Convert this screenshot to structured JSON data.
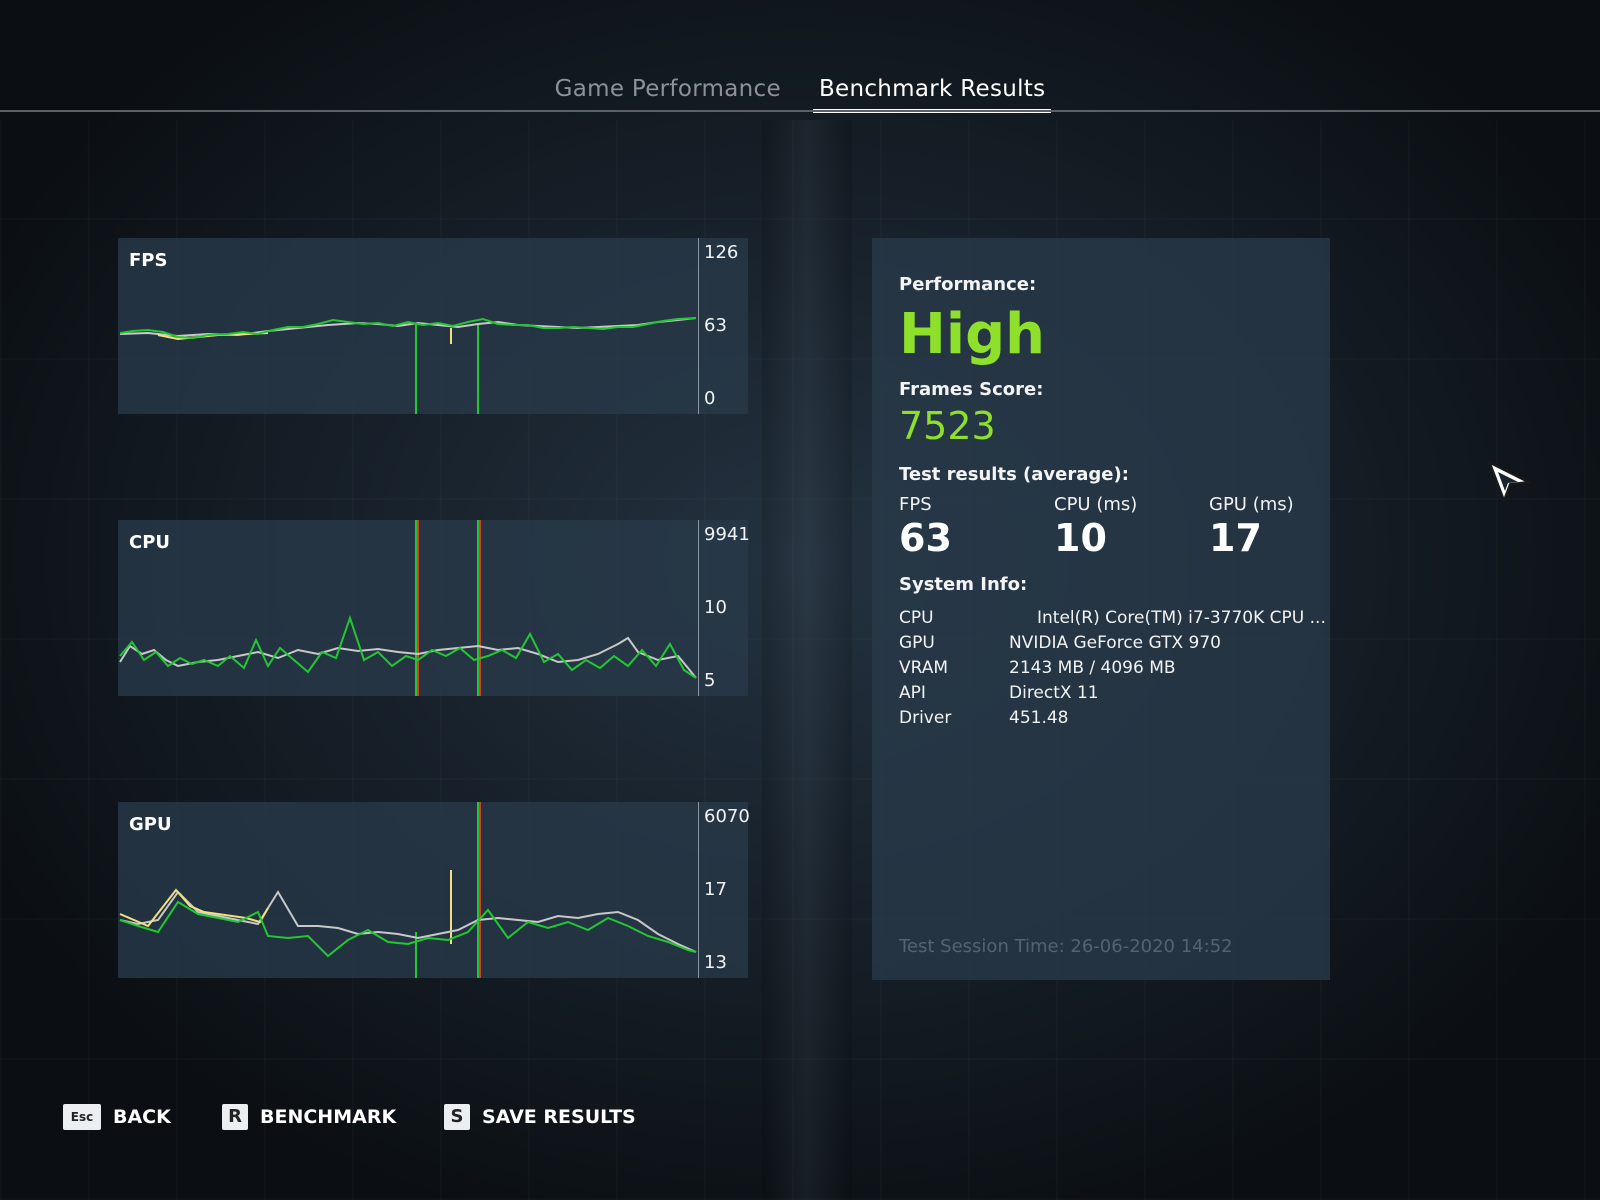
{
  "tabs": [
    {
      "label": "Game Performance",
      "active": false
    },
    {
      "label": "Benchmark Results",
      "active": true
    }
  ],
  "graphs": {
    "fps": {
      "title": "FPS",
      "ticks": [
        "126",
        "63",
        "0"
      ]
    },
    "cpu": {
      "title": "CPU",
      "ticks": [
        "9941",
        "10",
        "5"
      ]
    },
    "gpu": {
      "title": "GPU",
      "ticks": [
        "6070",
        "17",
        "13"
      ]
    }
  },
  "results": {
    "performance_label": "Performance:",
    "performance_value": "High",
    "score_label": "Frames Score:",
    "score_value": "7523",
    "test_results_label": "Test results (average):",
    "metrics": [
      {
        "label": "FPS",
        "value": "63"
      },
      {
        "label": "CPU (ms)",
        "value": "10"
      },
      {
        "label": "GPU (ms)",
        "value": "17"
      }
    ],
    "system_info_label": "System Info:",
    "system_info": [
      {
        "key": "CPU",
        "value": "Intel(R) Core(TM) i7-3770K CPU ..."
      },
      {
        "key": "GPU",
        "value": "NVIDIA GeForce GTX 970"
      },
      {
        "key": "VRAM",
        "value": "2143 MB / 4096 MB"
      },
      {
        "key": "API",
        "value": "DirectX 11"
      },
      {
        "key": "Driver",
        "value": "451.48"
      }
    ],
    "session_time": "Test Session Time: 26-06-2020 14:52"
  },
  "footer": [
    {
      "key": "Esc",
      "label": "BACK"
    },
    {
      "key": "R",
      "label": "BENCHMARK"
    },
    {
      "key": "S",
      "label": "SAVE RESULTS"
    }
  ],
  "colors": {
    "accent_green": "#8ee02a",
    "series_green": "#22c832",
    "series_grey": "#c8c8c8",
    "series_yellow": "#f0e080",
    "marker_red": "#e03a2a",
    "panel_bg": "#28394a"
  },
  "icons": {
    "cursor": "arrow-cursor-icon"
  }
}
